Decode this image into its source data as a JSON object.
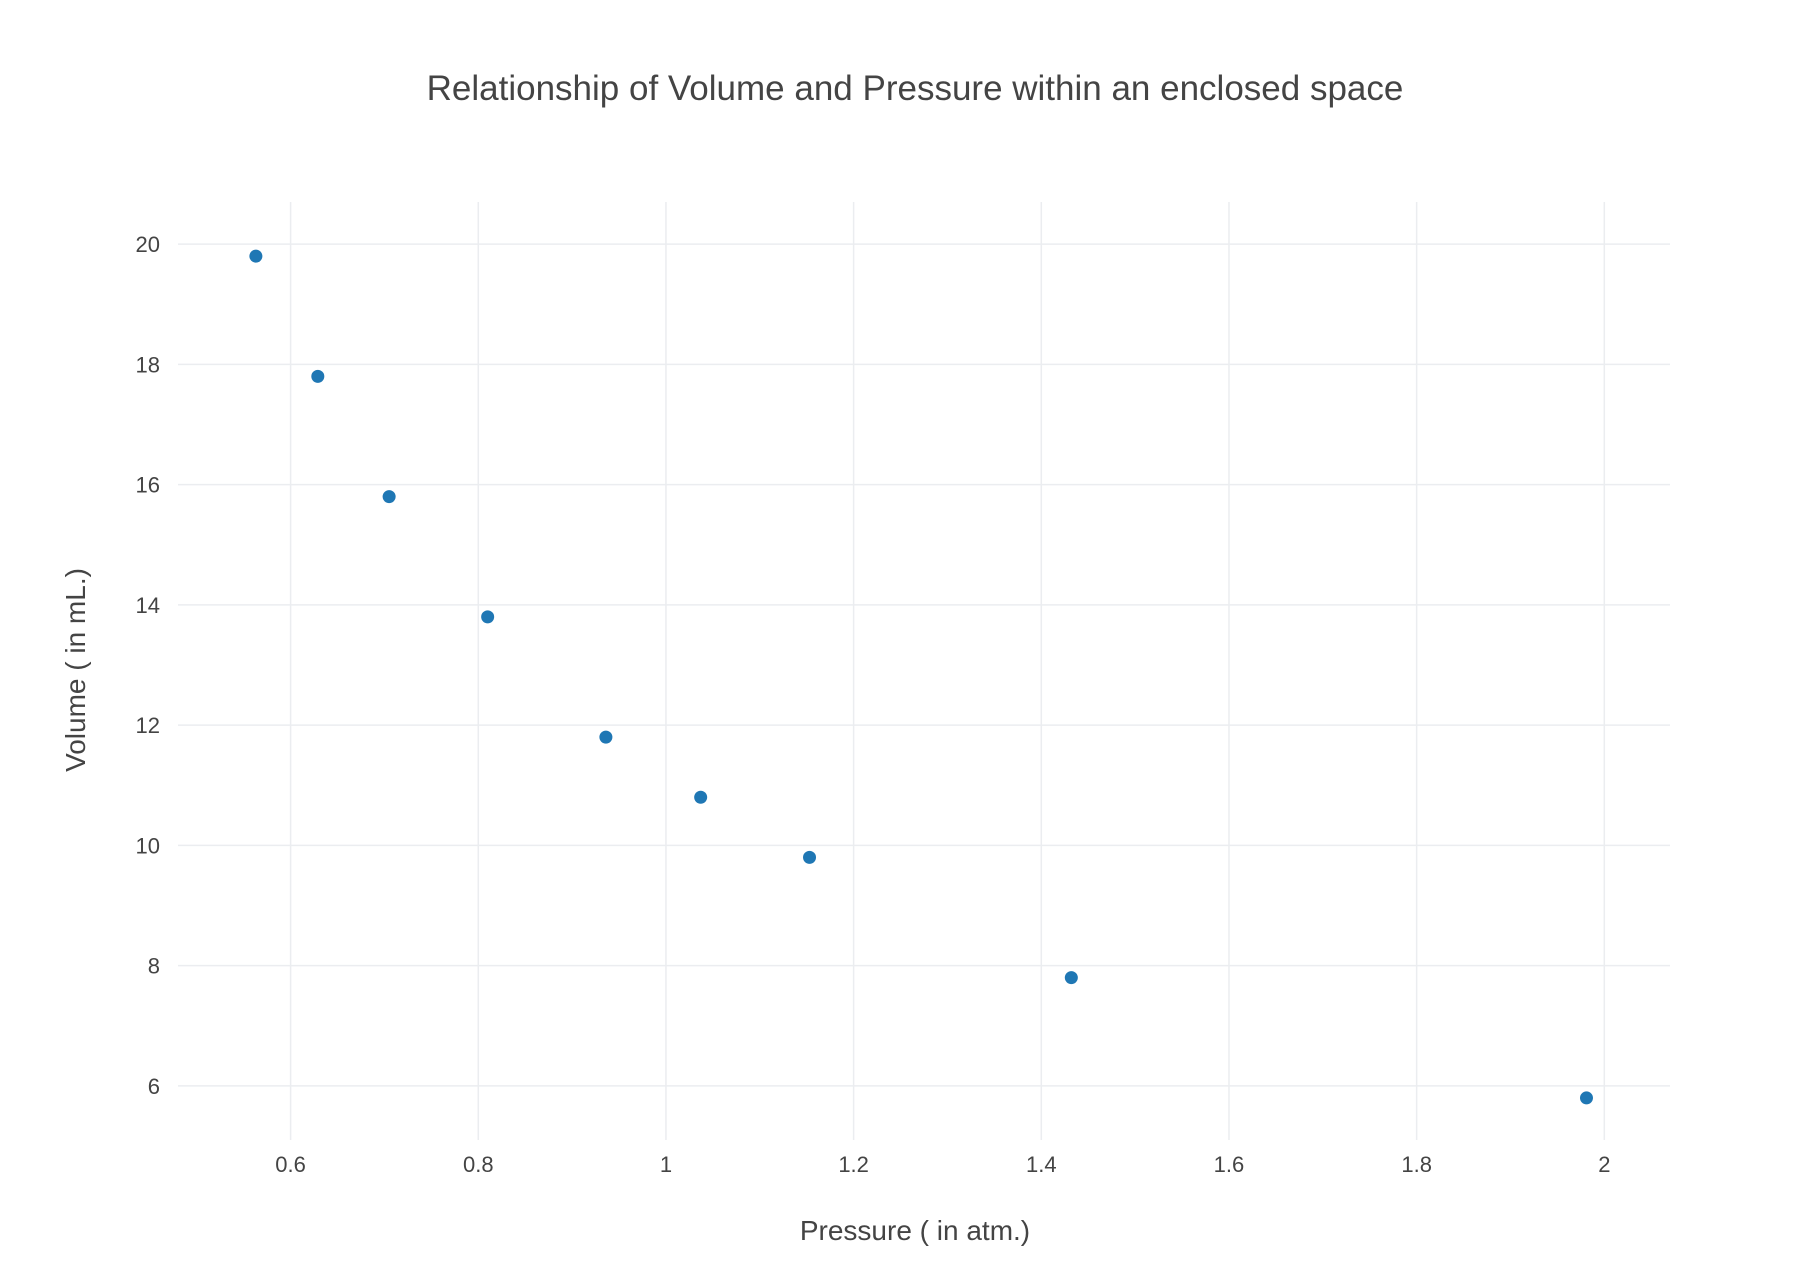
{
  "chart_data": {
    "type": "scatter",
    "title": "Relationship of Volume and Pressure within an enclosed space",
    "xlabel": "Pressure ( in atm.)",
    "ylabel": "Volume ( in mL.)",
    "xlim": [
      0.48,
      2.07
    ],
    "ylim": [
      5.1,
      20.7
    ],
    "xticks": [
      0.6,
      0.8,
      1,
      1.2,
      1.4,
      1.6,
      1.8,
      2
    ],
    "xtick_labels": [
      "0.6",
      "0.8",
      "1",
      "1.2",
      "1.4",
      "1.6",
      "1.8",
      "2"
    ],
    "yticks": [
      6,
      8,
      10,
      12,
      14,
      16,
      18,
      20
    ],
    "ytick_labels": [
      "6",
      "8",
      "10",
      "12",
      "14",
      "16",
      "18",
      "20"
    ],
    "grid": true,
    "marker_color": "#1f77b4",
    "series": [
      {
        "x": [
          0.563,
          0.629,
          0.705,
          0.81,
          0.936,
          1.037,
          1.153,
          1.432,
          1.981
        ],
        "y": [
          19.8,
          17.8,
          15.8,
          13.8,
          11.8,
          10.8,
          9.8,
          7.8,
          5.8
        ]
      }
    ]
  }
}
